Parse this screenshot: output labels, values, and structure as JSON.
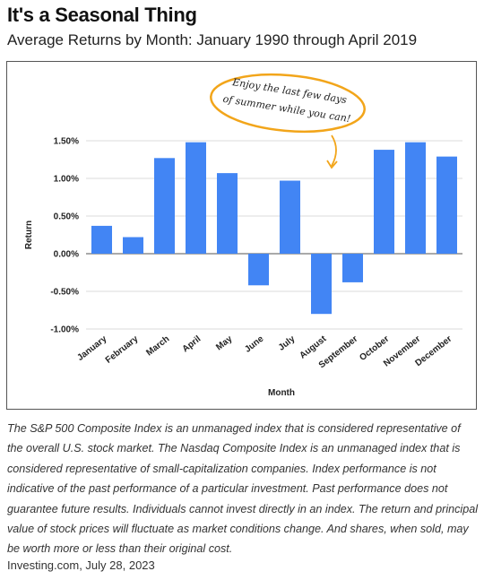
{
  "header": {
    "title": "It's a Seasonal Thing",
    "subtitle": "Average Returns by Month: January 1990 through April 2019"
  },
  "chart_data": {
    "type": "bar",
    "categories": [
      "January",
      "February",
      "March",
      "April",
      "May",
      "June",
      "July",
      "August",
      "September",
      "October",
      "November",
      "December"
    ],
    "values": [
      0.37,
      0.22,
      1.27,
      1.48,
      1.07,
      -0.42,
      0.97,
      -0.8,
      -0.38,
      1.38,
      1.48,
      1.29
    ],
    "xlabel": "Month",
    "ylabel": "Return",
    "ylim": [
      -1.0,
      1.5
    ],
    "yticks": [
      1.5,
      1.0,
      0.5,
      0.0,
      -0.5,
      -1.0
    ],
    "ytick_labels": [
      "1.50%",
      "1.00%",
      "0.50%",
      "0.00%",
      "-0.50%",
      "-1.00%"
    ],
    "grid": true,
    "bar_color": "#4285f4",
    "annotation": {
      "lines": [
        "Enjoy the last few days",
        "of summer while you can!"
      ],
      "target_category": "August",
      "outline_color": "#f2a51a"
    }
  },
  "disclaimer": "The S&P 500 Composite Index is an unmanaged index that is considered representative of the overall U.S. stock market. The Nasdaq Composite Index is an unmanaged index that is considered representative of small-capitalization companies. Index performance is not indicative of the past performance of a particular investment. Past performance does not guarantee future results. Individuals cannot invest directly in an index. The return and principal value of stock prices will fluctuate as market conditions change. And shares, when sold, may be worth more or less than their original cost.",
  "source": "Investing.com, July 28, 2023"
}
